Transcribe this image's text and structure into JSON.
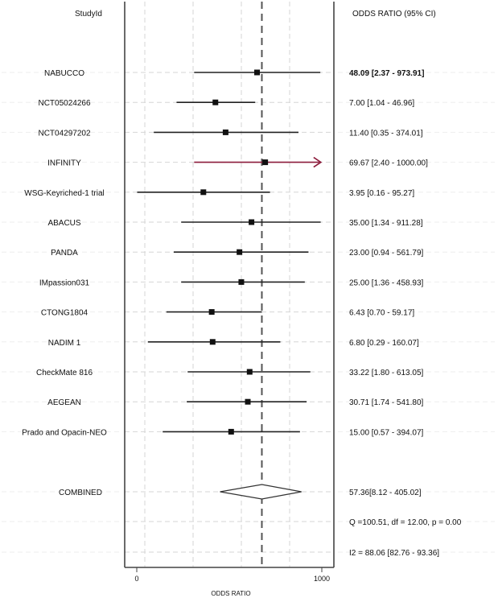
{
  "chart_data": {
    "type": "forest",
    "header": {
      "study_label": "StudyId",
      "or_label": "ODDS RATIO (95% CI)"
    },
    "xlabel": "ODDS RATIO",
    "xlim": [
      0,
      1000
    ],
    "xticks": [
      0,
      1000
    ],
    "reference_line": 676,
    "studies": [
      {
        "name": "NABUCCO",
        "point": 650,
        "lo": 310,
        "hi": 992,
        "ci_text": "48.09 [2.37 - 973.91]",
        "bold": true,
        "arrow": false
      },
      {
        "name": "NCT05024266",
        "point": 425,
        "lo": 215,
        "hi": 640,
        "ci_text": "7.00 [1.04 - 46.96]",
        "bold": false,
        "arrow": false
      },
      {
        "name": "NCT04297202",
        "point": 480,
        "lo": 92,
        "hi": 874,
        "ci_text": "11.40 [0.35 - 374.01]",
        "bold": false,
        "arrow": false
      },
      {
        "name": "INFINITY",
        "point": 694,
        "lo": 310,
        "hi": 995,
        "ci_text": "69.67 [2.40 - 1000.00]",
        "bold": false,
        "arrow": true
      },
      {
        "name": "WSG-Keyriched-1 trial",
        "point": 360,
        "lo": 2,
        "hi": 720,
        "ci_text": "3.95 [0.16 - 95.27]",
        "bold": false,
        "arrow": false
      },
      {
        "name": "ABACUS",
        "point": 620,
        "lo": 240,
        "hi": 994,
        "ci_text": "35.00 [1.34 - 911.28]",
        "bold": false,
        "arrow": false
      },
      {
        "name": "PANDA",
        "point": 555,
        "lo": 200,
        "hi": 928,
        "ci_text": "23.00 [0.94 - 561.79]",
        "bold": false,
        "arrow": false
      },
      {
        "name": "IMpassion031",
        "point": 565,
        "lo": 240,
        "hi": 908,
        "ci_text": "25.00 [1.36 - 458.93]",
        "bold": false,
        "arrow": false
      },
      {
        "name": "CTONG1804",
        "point": 405,
        "lo": 160,
        "hi": 676,
        "ci_text": "6.43 [0.70 - 59.17]",
        "bold": false,
        "arrow": false
      },
      {
        "name": "NADIM 1",
        "point": 410,
        "lo": 60,
        "hi": 776,
        "ci_text": "6.80 [0.29 - 160.07]",
        "bold": false,
        "arrow": false
      },
      {
        "name": "CheckMate 816",
        "point": 610,
        "lo": 275,
        "hi": 938,
        "ci_text": "33.22 [1.80 - 613.05]",
        "bold": false,
        "arrow": false
      },
      {
        "name": "AEGEAN",
        "point": 600,
        "lo": 270,
        "hi": 918,
        "ci_text": "30.71 [1.74 - 541.80]",
        "bold": false,
        "arrow": false
      },
      {
        "name": "Prado and Opacin-NEO",
        "point": 510,
        "lo": 140,
        "hi": 882,
        "ci_text": "15.00 [0.57 - 394.07]",
        "bold": false,
        "arrow": false
      }
    ],
    "combined": {
      "name": "COMBINED",
      "point": 676,
      "lo": 450,
      "hi": 890,
      "ci_text": "57.36[8.12 - 405.02]"
    },
    "stats": [
      "Q =100.51, df = 12.00, p =  0.00",
      "I2 = 88.06 [82.76 - 93.36]"
    ],
    "colors": {
      "ci_line": "#222222",
      "arrow": "#8b1a3a",
      "ref_line": "#555555",
      "grid": "#d6d6d6",
      "axis": "#444444"
    }
  }
}
